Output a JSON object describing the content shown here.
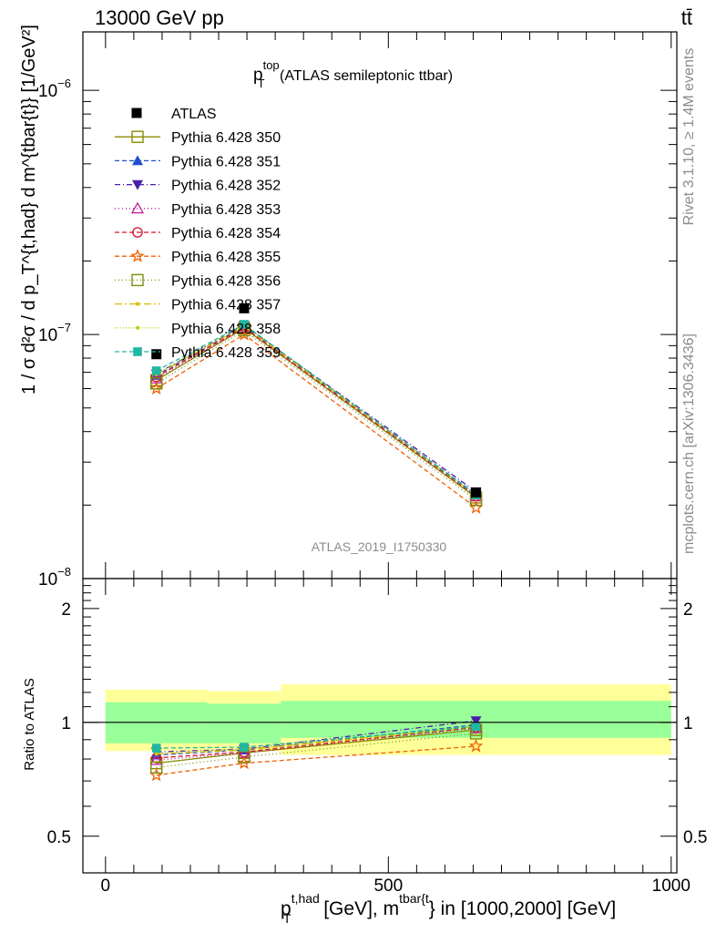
{
  "header": {
    "left": "13000 GeV pp",
    "right": "tt̄"
  },
  "side": {
    "rivet": "Rivet 3.1.10, ≥ 1.4M events",
    "mcplots": "mcplots.cern.ch [arXiv:1306.3436]"
  },
  "chart_data": {
    "type": "line",
    "title_main": "p",
    "title_sup": "top",
    "title_sub": "T",
    "title_rest": " (ATLAS semileptonic ttbar)",
    "watermark": "ATLAS_2019_I1750330",
    "ylabel_main": "1 / σ d²σ / d p_T^{t,had} d m^{tbar{t}} [1/GeV²]",
    "ylabel_ratio": "Ratio to ATLAS",
    "xlabel": {
      "p": "p",
      "sup1": "t,had",
      "sub1": "T",
      "mid": " [GeV], m",
      "sup2": "tbar{t",
      "end": "} in [1000,2000] [GeV]"
    },
    "yscale": "log",
    "ylim": [
      1e-08,
      1.5e-06
    ],
    "ylim_ratio": [
      0.4,
      2.4
    ],
    "xlim": [
      -40,
      1010
    ],
    "x_ticks": [
      "0",
      "500",
      "1000"
    ],
    "x_tick_values": [
      0,
      500,
      1000
    ],
    "y_ticks": [
      {
        "base": "10",
        "exp": "−6",
        "value": 1e-06
      },
      {
        "base": "10",
        "exp": "−7",
        "value": 1e-07
      },
      {
        "base": "10",
        "exp": "−8",
        "value": 1e-08
      }
    ],
    "ratio_ticks": [
      "0.5",
      "1",
      "2"
    ],
    "ratio_tick_values": [
      0.5,
      1,
      2
    ],
    "x": [
      90,
      245,
      655
    ],
    "bin_edges": [
      0,
      180,
      310,
      1000
    ],
    "band_green": [
      [
        0.88,
        1.13
      ],
      [
        0.88,
        1.12
      ],
      [
        0.91,
        1.14
      ]
    ],
    "band_yellow": [
      [
        0.84,
        1.22
      ],
      [
        0.84,
        1.21
      ],
      [
        0.82,
        1.26
      ]
    ],
    "data": {
      "name": "ATLAS",
      "values": [
        8.3e-08,
        1.28e-07,
        2.25e-08
      ]
    },
    "series": [
      {
        "name": "Pythia 6.428 350",
        "color": "#8b8b00",
        "dash": "",
        "marker": "square-open",
        "values": [
          6.5e-08,
          1.06e-07,
          2.15e-08
        ]
      },
      {
        "name": "Pythia 6.428 351",
        "color": "#1f4fd0",
        "dash": "5,3",
        "marker": "triangle-up",
        "values": [
          6.8e-08,
          1.08e-07,
          2.22e-08
        ]
      },
      {
        "name": "Pythia 6.428 352",
        "color": "#4a1fa8",
        "dash": "6,3,1,3",
        "marker": "triangle-down",
        "values": [
          6.9e-08,
          1.09e-07,
          2.27e-08
        ]
      },
      {
        "name": "Pythia 6.428 353",
        "color": "#c41a9a",
        "dash": "1,3",
        "marker": "triangle-up-open",
        "values": [
          6.6e-08,
          1.06e-07,
          2.17e-08
        ]
      },
      {
        "name": "Pythia 6.428 354",
        "color": "#d4102a",
        "dash": "5,3",
        "marker": "circle-open",
        "values": [
          6.7e-08,
          1.07e-07,
          2.18e-08
        ]
      },
      {
        "name": "Pythia 6.428 355",
        "color": "#f06000",
        "dash": "5,3",
        "marker": "star-open",
        "values": [
          6e-08,
          1e-07,
          1.95e-08
        ]
      },
      {
        "name": "Pythia 6.428 356",
        "color": "#7a8f10",
        "dash": "1,3",
        "marker": "square-open",
        "values": [
          6.3e-08,
          1.04e-07,
          2.1e-08
        ]
      },
      {
        "name": "Pythia 6.428 357",
        "color": "#d8c000",
        "dash": "8,3,2,3",
        "marker": "dot",
        "values": [
          6.85e-08,
          1.08e-07,
          2.2e-08
        ]
      },
      {
        "name": "Pythia 6.428 358",
        "color": "#b8d020",
        "dash": "1,2",
        "marker": "dot",
        "values": [
          6.9e-08,
          1.09e-07,
          2.21e-08
        ]
      },
      {
        "name": "Pythia 6.428 359",
        "color": "#20b8a0",
        "dash": "5,3",
        "marker": "square-filled",
        "values": [
          7.1e-08,
          1.1e-07,
          2.2e-08
        ]
      }
    ],
    "ratios": [
      [
        0.78,
        0.83,
        0.955
      ],
      [
        0.82,
        0.845,
        0.985
      ],
      [
        0.835,
        0.85,
        1.01
      ],
      [
        0.795,
        0.83,
        0.965
      ],
      [
        0.805,
        0.835,
        0.97
      ],
      [
        0.725,
        0.78,
        0.865
      ],
      [
        0.76,
        0.81,
        0.935
      ],
      [
        0.825,
        0.845,
        0.975
      ],
      [
        0.83,
        0.85,
        0.98
      ],
      [
        0.855,
        0.86,
        0.975
      ]
    ]
  },
  "colors": {
    "green_band": "#99ff99",
    "yellow_band": "#ffff99",
    "data_marker": "#000000"
  }
}
